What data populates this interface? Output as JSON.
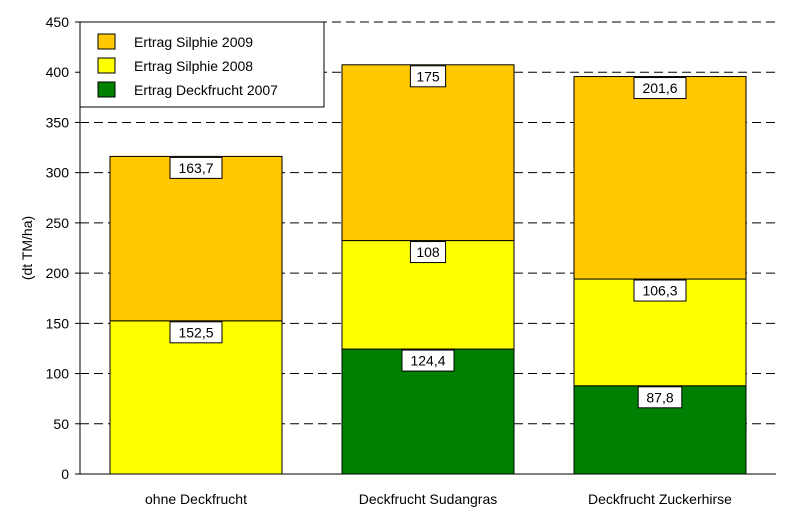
{
  "chart_data": {
    "type": "bar",
    "stacked": true,
    "categories": [
      "ohne Deckfrucht",
      "Deckfrucht Sudangras",
      "Deckfrucht Zuckerhirse"
    ],
    "series": [
      {
        "name": "Ertrag Deckfrucht 2007",
        "color": "#008000",
        "values": [
          0,
          124.4,
          87.8
        ],
        "labels": [
          "",
          "124,4",
          "87,8"
        ]
      },
      {
        "name": "Ertrag Silphie 2008",
        "color": "#FFFF00",
        "values": [
          152.5,
          108,
          106.3
        ],
        "labels": [
          "152,5",
          "108",
          "106,3"
        ]
      },
      {
        "name": "Ertrag Silphie 2009",
        "color": "#FFC800",
        "values": [
          163.7,
          175,
          201.6
        ],
        "labels": [
          "163,7",
          "175",
          "201,6"
        ]
      }
    ],
    "ylabel": "(dt TM/ha)",
    "xlabel": "",
    "ylim": [
      0,
      450
    ],
    "yticks": [
      "0",
      "50",
      "100",
      "150",
      "200",
      "250",
      "300",
      "350",
      "400",
      "450"
    ],
    "grid": "horizontal dashed",
    "legend_position": "top-left",
    "legend_order": [
      "Ertrag Silphie 2009",
      "Ertrag Silphie 2008",
      "Ertrag Deckfrucht 2007"
    ]
  }
}
